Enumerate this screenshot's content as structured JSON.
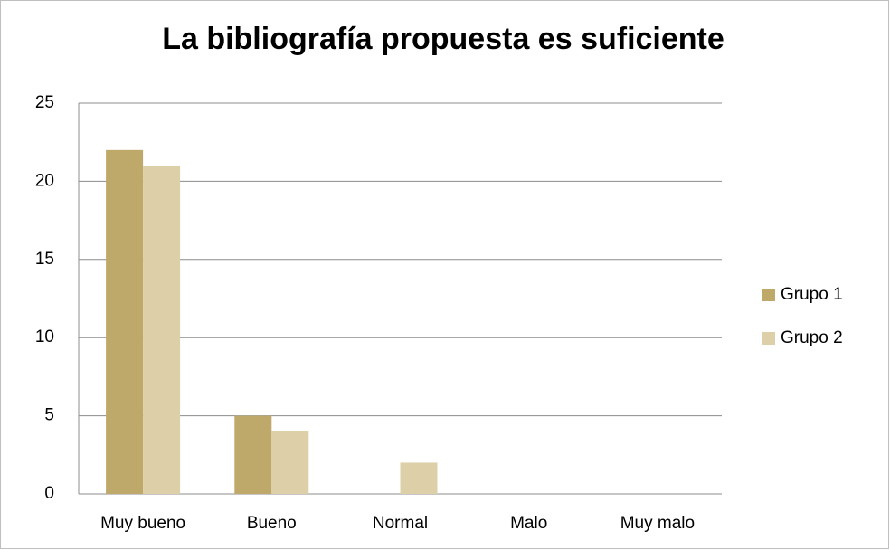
{
  "chart_data": {
    "type": "bar",
    "title": "La bibliografía propuesta es suficiente",
    "categories": [
      "Muy bueno",
      "Bueno",
      "Normal",
      "Malo",
      "Muy malo"
    ],
    "series": [
      {
        "name": "Grupo 1",
        "color": "#bea86a",
        "values": [
          22,
          5,
          0,
          0,
          0
        ]
      },
      {
        "name": "Grupo 2",
        "color": "#ddd0a9",
        "values": [
          21,
          4,
          2,
          0,
          0
        ]
      }
    ],
    "ylim": [
      0,
      25
    ],
    "yticks": [
      0,
      5,
      10,
      15,
      20,
      25
    ],
    "grid": true,
    "legend": "right"
  }
}
